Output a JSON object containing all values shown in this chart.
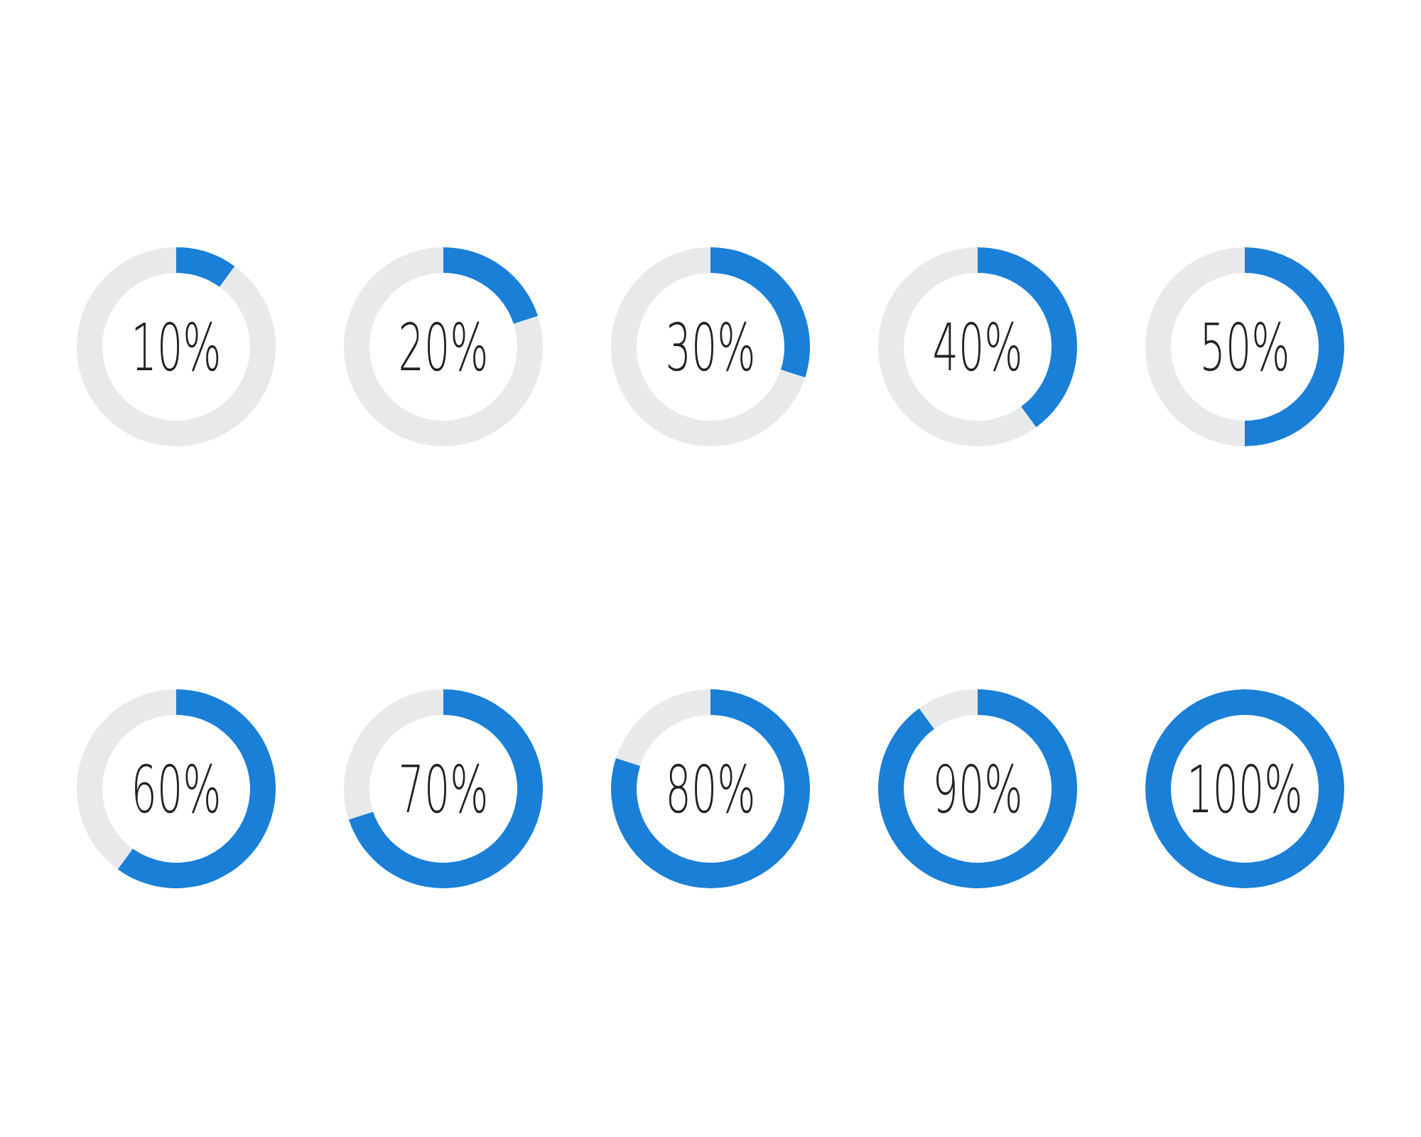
{
  "chart_data": [
    {
      "type": "donut",
      "categories": [
        null,
        null
      ],
      "values": [
        10,
        90
      ],
      "colors": [
        "#1a7fd6",
        "#e8e9eb"
      ],
      "annotations": [
        "10%"
      ]
    },
    {
      "type": "donut",
      "categories": [
        null,
        null
      ],
      "values": [
        20,
        80
      ],
      "colors": [
        "#1a7fd6",
        "#e8e9eb"
      ],
      "annotations": [
        "20%"
      ]
    },
    {
      "type": "donut",
      "categories": [
        null,
        null
      ],
      "values": [
        30,
        70
      ],
      "colors": [
        "#1a7fd6",
        "#e8e9eb"
      ],
      "annotations": [
        "30%"
      ]
    },
    {
      "type": "donut",
      "categories": [
        null,
        null
      ],
      "values": [
        40,
        60
      ],
      "colors": [
        "#1a7fd6",
        "#e8e9eb"
      ],
      "annotations": [
        "40%"
      ]
    },
    {
      "type": "donut",
      "categories": [
        null,
        null
      ],
      "values": [
        50,
        50
      ],
      "colors": [
        "#1a7fd6",
        "#e8e9eb"
      ],
      "annotations": [
        "50%"
      ]
    },
    {
      "type": "donut",
      "categories": [
        null,
        null
      ],
      "values": [
        60,
        40
      ],
      "colors": [
        "#1a7fd6",
        "#e8e9eb"
      ],
      "annotations": [
        "60%"
      ]
    },
    {
      "type": "donut",
      "categories": [
        null,
        null
      ],
      "values": [
        70,
        30
      ],
      "colors": [
        "#1a7fd6",
        "#e8e9eb"
      ],
      "annotations": [
        "70%"
      ]
    },
    {
      "type": "donut",
      "categories": [
        null,
        null
      ],
      "values": [
        80,
        20
      ],
      "colors": [
        "#1a7fd6",
        "#e8e9eb"
      ],
      "annotations": [
        "80%"
      ]
    },
    {
      "type": "donut",
      "categories": [
        null,
        null
      ],
      "values": [
        90,
        10
      ],
      "colors": [
        "#1a7fd6",
        "#e8e9eb"
      ],
      "annotations": [
        "90%"
      ]
    },
    {
      "type": "donut",
      "categories": [
        null,
        null
      ],
      "values": [
        100,
        0
      ],
      "colors": [
        "#1a7fd6",
        "#e8e9eb"
      ],
      "annotations": [
        "100%"
      ]
    }
  ]
}
